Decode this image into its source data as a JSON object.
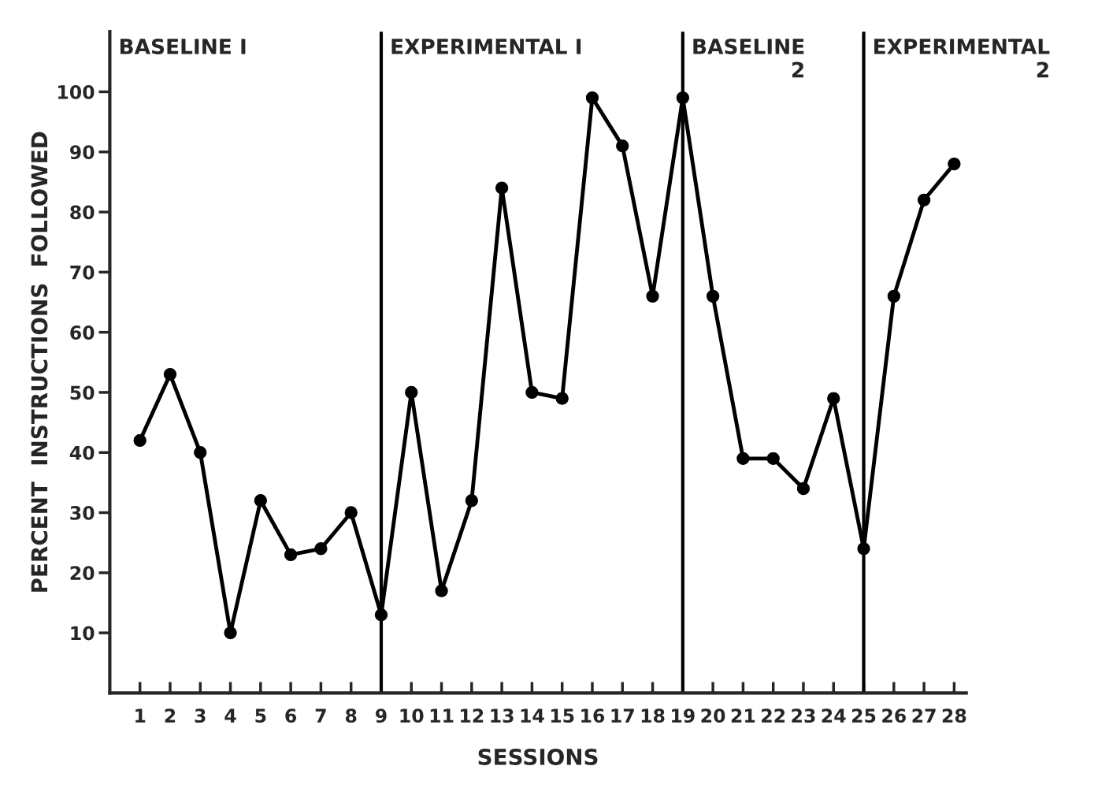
{
  "chart_data": {
    "type": "line",
    "xlabel": "SESSIONS",
    "ylabel": "PERCENT  INSTRUCTIONS  FOLLOWED",
    "x": [
      1,
      2,
      3,
      4,
      5,
      6,
      7,
      8,
      9,
      10,
      11,
      12,
      13,
      14,
      15,
      16,
      17,
      18,
      19,
      20,
      21,
      22,
      23,
      24,
      25,
      26,
      27,
      28
    ],
    "series": [
      {
        "color": "#000000",
        "values": [
          42,
          53,
          40,
          10,
          32,
          23,
          24,
          30,
          13,
          50,
          17,
          32,
          84,
          50,
          49,
          99,
          91,
          66,
          99,
          66,
          39,
          39,
          34,
          49,
          24,
          66,
          82,
          88
        ]
      }
    ],
    "xlim": [
      0,
      28.4
    ],
    "ylim": [
      0,
      110
    ],
    "xticks": [
      1,
      2,
      3,
      4,
      5,
      6,
      7,
      8,
      9,
      10,
      11,
      12,
      13,
      14,
      15,
      16,
      17,
      18,
      19,
      20,
      21,
      22,
      23,
      24,
      25,
      26,
      27,
      28
    ],
    "yticks": [
      10,
      20,
      30,
      40,
      50,
      60,
      70,
      80,
      90,
      100
    ],
    "ref_lines": [
      {
        "axis": "x",
        "value": 9,
        "color": "#000000"
      },
      {
        "axis": "x",
        "value": 19,
        "color": "#000000"
      },
      {
        "axis": "x",
        "value": 25,
        "color": "#000000"
      }
    ],
    "annotations": [
      "BASELINE I",
      "EXPERIMENTAL I",
      "BASELINE\n2",
      "EXPERIMENTAL\n2"
    ],
    "marker": "circle",
    "line_style": "solid",
    "grid": false,
    "legend": false
  }
}
